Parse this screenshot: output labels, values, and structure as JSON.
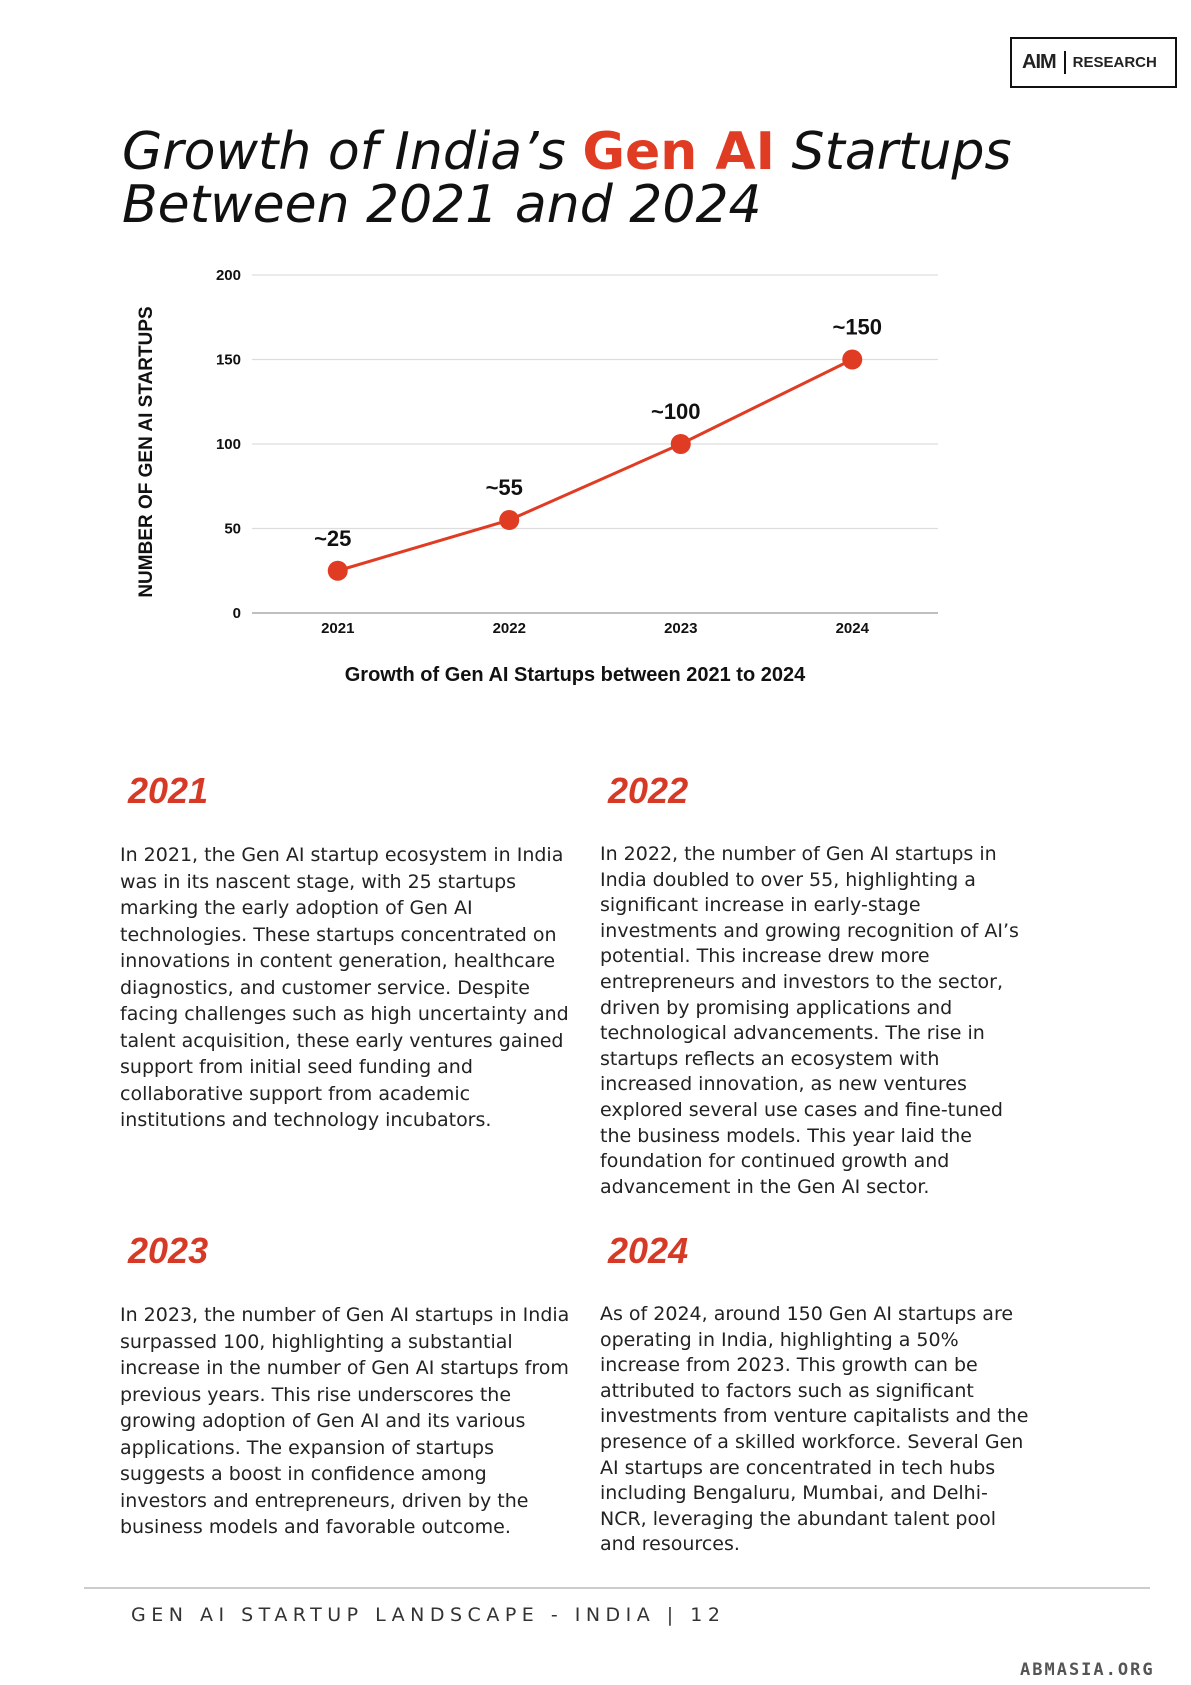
{
  "brand": {
    "logo": "AIM",
    "label": "RESEARCH"
  },
  "title": {
    "line1_start": "Growth of India’s ",
    "line1_highlight": "Gen AI",
    "line1_end": " Startups",
    "line2": "Between 2021 and 2024"
  },
  "chart_data": {
    "type": "line",
    "y_label": "NUMBER OF GEN AI STARTUPS",
    "x_label": "Growth of Gen AI Startups between 2021 to 2024",
    "categories": [
      "2021",
      "2022",
      "2023",
      "2024"
    ],
    "values": [
      25,
      55,
      100,
      150
    ],
    "value_labels": [
      "~25",
      "~55",
      "~100",
      "~150"
    ],
    "color": "#e03c24",
    "ylim": [
      0,
      200
    ],
    "yticks": [
      0,
      50,
      100,
      150,
      200
    ],
    "grid": true
  },
  "sections": [
    {
      "year": "2021",
      "text": "In 2021, the Gen AI startup ecosystem in India was in its nascent stage, with 25 startups marking the early adoption of Gen AI technologies. These startups concentrated on innovations in content generation, healthcare diagnostics, and customer service. Despite facing challenges such as high uncertainty and talent acquisition, these early ventures gained support from initial seed funding and collaborative support from academic institutions and technology incubators."
    },
    {
      "year": "2022",
      "text": "In 2022, the number of Gen AI startups in India  doubled to over 55, highlighting a significant increase in early-stage investments and growing recognition of AI’s potential. This increase drew more entrepreneurs and investors to the sector, driven by promising applications and technological advancements. The rise in startups reflects an ecosystem with increased innovation, as new ventures explored several use cases and fine-tuned the business models. This year laid the foundation for continued growth and advancement in the Gen AI sector."
    },
    {
      "year": "2023",
      "text": "In 2023, the number of Gen AI startups in India surpassed 100, highlighting a substantial increase in the number of Gen AI startups from previous years. This rise underscores the growing adoption of Gen AI and its various applications. The expansion of startups suggests a boost in confidence among investors and entrepreneurs, driven by the business models and favorable outcome."
    },
    {
      "year": "2024",
      "text": "As of 2024, around 150 Gen AI startups are operating in India, highlighting a 50% increase from 2023. This growth can be attributed to factors such as significant investments from venture capitalists and the presence of a skilled workforce.  Several Gen AI startups are concentrated in tech hubs including Bengaluru, Mumbai, and Delhi-NCR, leveraging the abundant talent pool and resources."
    }
  ],
  "footer": "GEN AI STARTUP LANDSCAPE - INDIA | 12",
  "watermark": "ABMASIA.ORG"
}
